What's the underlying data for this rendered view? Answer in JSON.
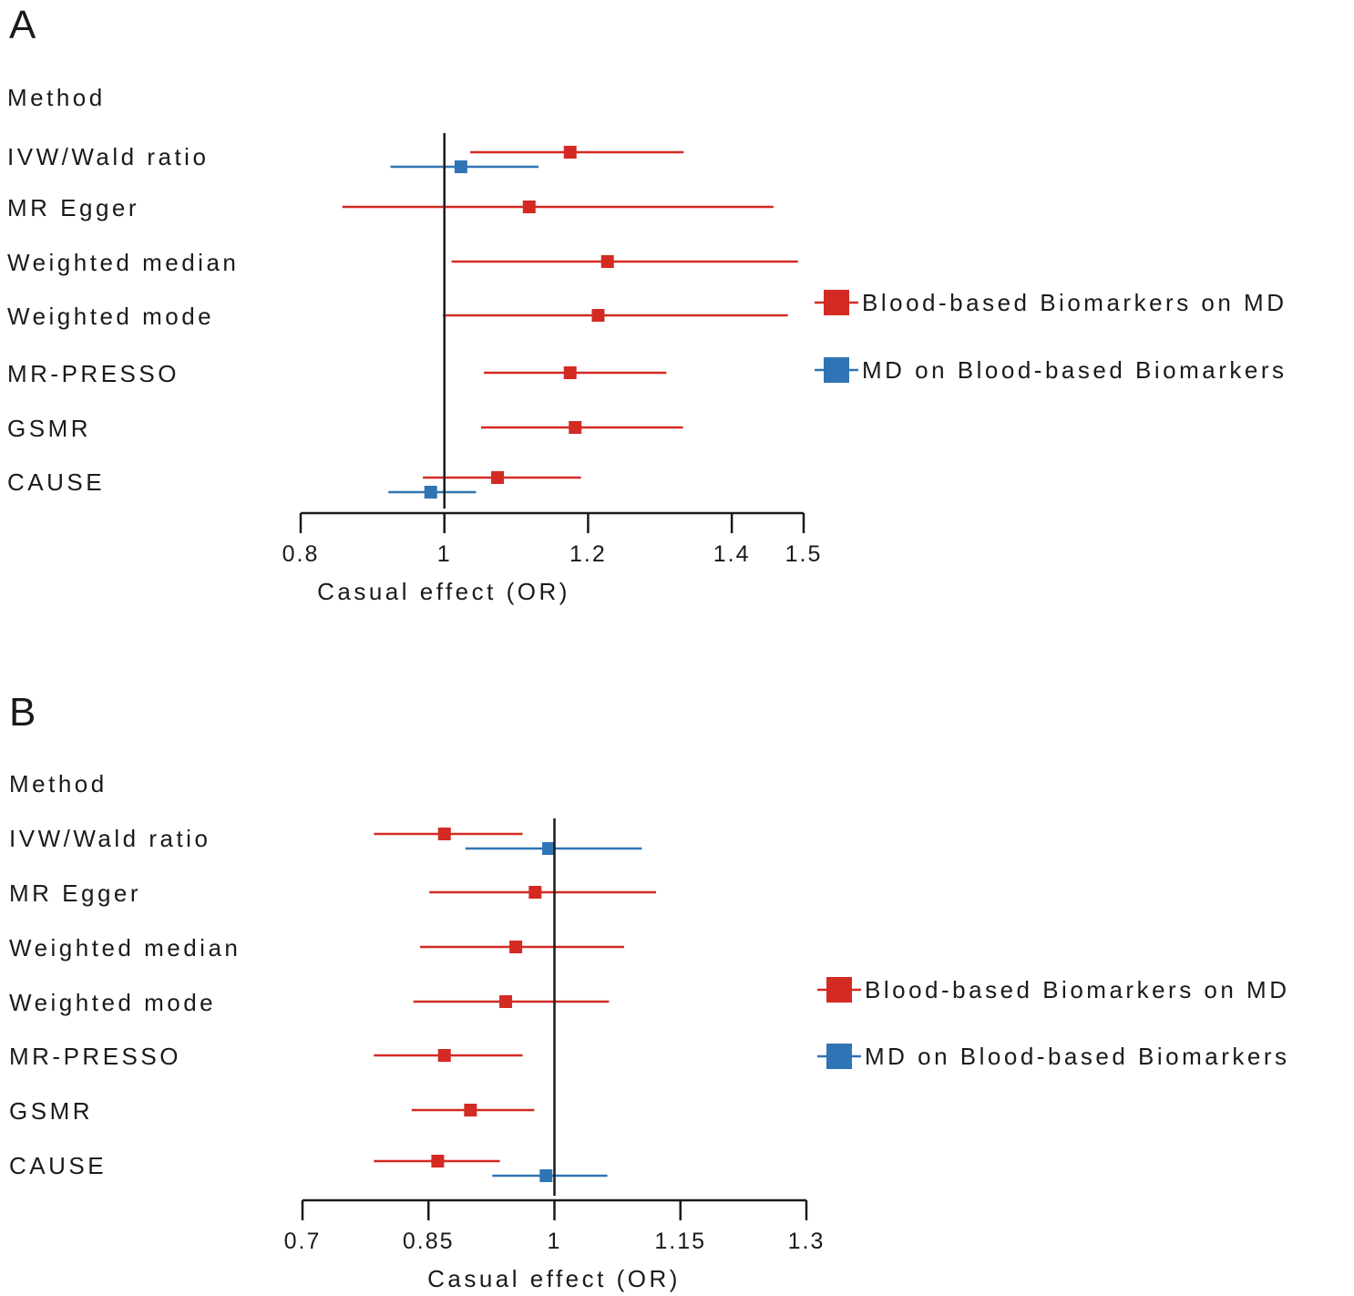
{
  "chart_data": [
    {
      "type": "forest",
      "panel": "A",
      "column_header": "Method",
      "xlabel": "Casual effect (OR)",
      "xlim": [
        0.8,
        1.5
      ],
      "ticks": [
        0.8,
        1,
        1.2,
        1.4,
        1.5
      ],
      "tick_labels": [
        "0.8",
        "1",
        "1.2",
        "1.4",
        "1.5"
      ],
      "reference_line": 1,
      "legend_placement": "right",
      "methods": [
        "IVW/Wald ratio",
        "MR Egger",
        "Weighted median",
        "Weighted mode",
        "MR-PRESSO",
        "GSMR",
        "CAUSE"
      ],
      "series": [
        {
          "name": "Blood-based Biomarkers on MD",
          "color": "#d42a24",
          "points": [
            {
              "method": "IVW/Wald ratio",
              "or": 1.175,
              "lower": 1.036,
              "upper": 1.333
            },
            {
              "method": "MR Egger",
              "or": 1.118,
              "lower": 0.858,
              "upper": 1.458
            },
            {
              "method": "Weighted median",
              "or": 1.227,
              "lower": 1.01,
              "upper": 1.492
            },
            {
              "method": "Weighted mode",
              "or": 1.214,
              "lower": 0.998,
              "upper": 1.478
            },
            {
              "method": "MR-PRESSO",
              "or": 1.175,
              "lower": 1.055,
              "upper": 1.309
            },
            {
              "method": "GSMR",
              "or": 1.182,
              "lower": 1.051,
              "upper": 1.332
            },
            {
              "method": "CAUSE",
              "or": 1.074,
              "lower": 0.97,
              "upper": 1.19
            }
          ]
        },
        {
          "name": "MD on Blood-based Biomarkers",
          "color": "#2f74b4",
          "points": [
            {
              "method": "IVW/Wald ratio",
              "or": 1.023,
              "lower": 0.925,
              "upper": 1.131
            },
            {
              "method": "CAUSE",
              "or": 0.981,
              "lower": 0.922,
              "upper": 1.044
            }
          ]
        }
      ]
    },
    {
      "type": "forest",
      "panel": "B",
      "column_header": "Method",
      "xlabel": "Casual effect (OR)",
      "xlim": [
        0.7,
        1.3
      ],
      "ticks": [
        0.7,
        0.85,
        1,
        1.15,
        1.3
      ],
      "tick_labels": [
        "0.7",
        "0.85",
        "1",
        "1.15",
        "1.3"
      ],
      "reference_line": 1,
      "legend_placement": "right",
      "methods": [
        "IVW/Wald ratio",
        "MR Egger",
        "Weighted median",
        "Weighted mode",
        "MR-PRESSO",
        "GSMR",
        "CAUSE"
      ],
      "series": [
        {
          "name": "Blood-based Biomarkers on MD",
          "color": "#d42a24",
          "points": [
            {
              "method": "IVW/Wald ratio",
              "or": 0.869,
              "lower": 0.785,
              "upper": 0.962
            },
            {
              "method": "MR Egger",
              "or": 0.977,
              "lower": 0.851,
              "upper": 1.121
            },
            {
              "method": "Weighted median",
              "or": 0.954,
              "lower": 0.84,
              "upper": 1.083
            },
            {
              "method": "Weighted mode",
              "or": 0.942,
              "lower": 0.832,
              "upper": 1.065
            },
            {
              "method": "MR-PRESSO",
              "or": 0.869,
              "lower": 0.785,
              "upper": 0.962
            },
            {
              "method": "GSMR",
              "or": 0.9,
              "lower": 0.83,
              "upper": 0.976
            },
            {
              "method": "CAUSE",
              "or": 0.861,
              "lower": 0.785,
              "upper": 0.935
            }
          ]
        },
        {
          "name": "MD on Blood-based Biomarkers",
          "color": "#2f74b4",
          "points": [
            {
              "method": "IVW/Wald ratio",
              "or": 0.993,
              "lower": 0.894,
              "upper": 1.104
            },
            {
              "method": "CAUSE",
              "or": 0.99,
              "lower": 0.926,
              "upper": 1.063
            }
          ]
        }
      ]
    }
  ]
}
